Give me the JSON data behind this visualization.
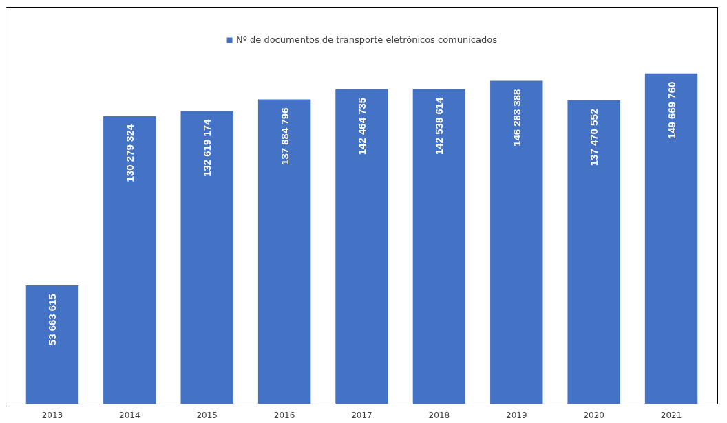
{
  "chart_data": {
    "type": "bar",
    "categories": [
      "2013",
      "2014",
      "2015",
      "2016",
      "2017",
      "2018",
      "2019",
      "2020",
      "2021"
    ],
    "series": [
      {
        "name": "Nº de documentos de transporte eletrónicos comunicados",
        "color": "#4472c4",
        "values": [
          53663615,
          130279324,
          132619174,
          137884796,
          142464735,
          142538614,
          146283388,
          137470552,
          149669760
        ],
        "value_labels": [
          "53 663 615",
          "130 279 324",
          "132 619 174",
          "137 884 796",
          "142 464 735",
          "142 538 614",
          "146 283 388",
          "137 470 552",
          "149 669 760"
        ]
      }
    ],
    "legend": "top",
    "grid": false
  }
}
